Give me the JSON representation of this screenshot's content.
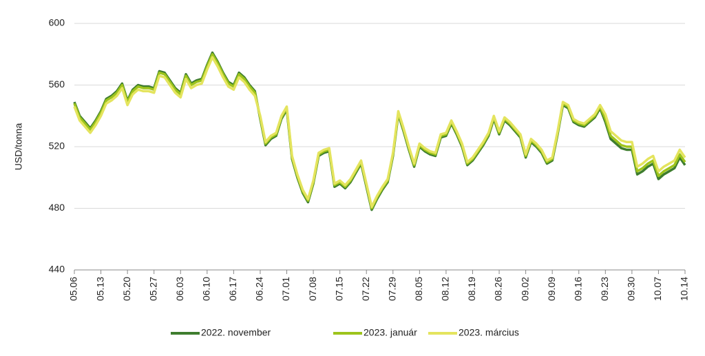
{
  "chart_data": {
    "type": "line",
    "ylabel": "USD/tonna",
    "categories": [
      "05.06",
      null,
      null,
      null,
      null,
      "05.13",
      null,
      null,
      null,
      null,
      "05.20",
      null,
      null,
      null,
      null,
      "05.27",
      null,
      null,
      null,
      null,
      "06.03",
      null,
      null,
      null,
      null,
      "06.10",
      null,
      null,
      null,
      null,
      "06.17",
      null,
      null,
      null,
      null,
      "06.24",
      null,
      null,
      null,
      null,
      "07.01",
      null,
      null,
      null,
      null,
      "07.08",
      null,
      null,
      null,
      null,
      "07.15",
      null,
      null,
      null,
      null,
      "07.22",
      null,
      null,
      null,
      null,
      "07.29",
      null,
      null,
      null,
      null,
      "08.05",
      null,
      null,
      null,
      null,
      "08.12",
      null,
      null,
      null,
      null,
      "08.19",
      null,
      null,
      null,
      null,
      "08.26",
      null,
      null,
      null,
      null,
      "09.02",
      null,
      null,
      null,
      null,
      "09.09",
      null,
      null,
      null,
      null,
      "09.16",
      null,
      null,
      null,
      null,
      "09.23",
      null,
      null,
      null,
      null,
      "09.30",
      null,
      null,
      null,
      null,
      "10.07",
      null,
      null,
      null,
      null,
      "10.14"
    ],
    "series": [
      {
        "name": "2022. november",
        "color": "#3e7d2e",
        "values": [
          549,
          540,
          536,
          532,
          537,
          543,
          551,
          553,
          556,
          561,
          550,
          557,
          560,
          559,
          559,
          558,
          569,
          568,
          563,
          558,
          555,
          567,
          561,
          563,
          564,
          573,
          581,
          575,
          568,
          562,
          560,
          568,
          565,
          560,
          556,
          538,
          521,
          525,
          527,
          538,
          544,
          512,
          500,
          490,
          484,
          496,
          514,
          516,
          517,
          494,
          496,
          493,
          497,
          503,
          509,
          494,
          479,
          486,
          492,
          497,
          514,
          541,
          530,
          518,
          507,
          520,
          517,
          515,
          514,
          526,
          527,
          535,
          528,
          520,
          508,
          511,
          516,
          521,
          527,
          538,
          528,
          537,
          534,
          530,
          526,
          513,
          523,
          520,
          516,
          509,
          511,
          528,
          547,
          545,
          536,
          534,
          533,
          536,
          539,
          545,
          536,
          525,
          522,
          519,
          518,
          518,
          502,
          504,
          507,
          509,
          499,
          502,
          504,
          506,
          513,
          508
        ]
      },
      {
        "name": "2023. január",
        "color": "#9dc41c",
        "values": [
          548,
          539,
          535,
          531,
          536,
          542,
          550,
          552,
          555,
          560,
          549,
          556,
          559,
          558,
          558,
          557,
          568,
          567,
          562,
          557,
          554,
          566,
          560,
          562,
          563,
          572,
          580,
          574,
          567,
          561,
          559,
          567,
          564,
          559,
          555,
          539,
          522,
          526,
          528,
          539,
          545,
          513,
          501,
          491,
          485,
          497,
          515,
          517,
          518,
          495,
          497,
          494,
          498,
          504,
          510,
          495,
          480,
          487,
          493,
          498,
          515,
          542,
          531,
          519,
          508,
          521,
          518,
          516,
          515,
          527,
          528,
          536,
          529,
          521,
          509,
          512,
          517,
          522,
          528,
          539,
          529,
          538,
          535,
          531,
          527,
          514,
          524,
          521,
          517,
          510,
          512,
          529,
          548,
          546,
          537,
          535,
          534,
          537,
          540,
          546,
          538,
          527,
          524,
          521,
          520,
          520,
          504,
          506,
          509,
          511,
          501,
          504,
          506,
          508,
          515,
          510
        ]
      },
      {
        "name": "2023. március",
        "color": "#e4e45e",
        "values": [
          546,
          537,
          533,
          529,
          534,
          540,
          548,
          550,
          553,
          558,
          547,
          554,
          557,
          556,
          556,
          555,
          566,
          565,
          560,
          555,
          552,
          564,
          558,
          560,
          561,
          570,
          578,
          572,
          565,
          559,
          557,
          565,
          562,
          557,
          553,
          540,
          523,
          527,
          529,
          540,
          546,
          514,
          502,
          492,
          486,
          498,
          516,
          518,
          519,
          496,
          498,
          495,
          499,
          505,
          511,
          496,
          481,
          488,
          494,
          499,
          516,
          543,
          532,
          520,
          509,
          522,
          519,
          517,
          516,
          528,
          529,
          537,
          530,
          522,
          510,
          513,
          518,
          523,
          529,
          540,
          530,
          539,
          536,
          532,
          528,
          515,
          525,
          522,
          518,
          511,
          513,
          530,
          549,
          547,
          538,
          536,
          535,
          538,
          541,
          547,
          541,
          530,
          527,
          524,
          523,
          523,
          507,
          509,
          512,
          514,
          504,
          507,
          509,
          511,
          518,
          513
        ]
      }
    ],
    "ylim": [
      440,
      600
    ],
    "yticks": [
      440,
      480,
      520,
      560,
      600
    ],
    "grid": true,
    "legend": "bottom"
  }
}
